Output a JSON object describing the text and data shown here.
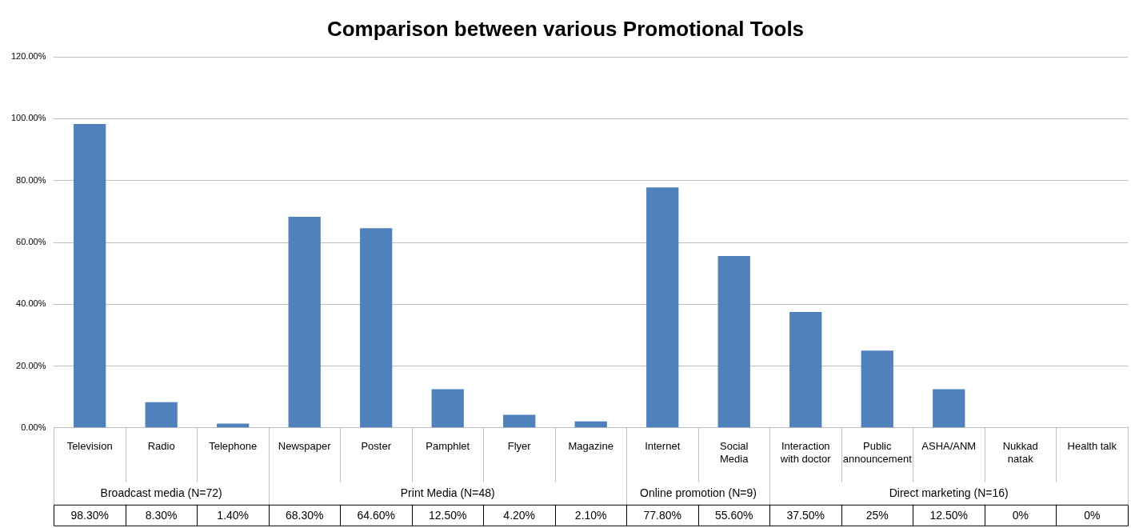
{
  "chart_data": {
    "type": "bar",
    "title": "Comparison between various Promotional Tools",
    "categories": [
      "Television",
      "Radio",
      "Telephone",
      "Newspaper",
      "Poster",
      "Pamphlet",
      "Flyer",
      "Magazine",
      "Internet",
      "Social Media",
      "Interaction with doctor",
      "Public announcement",
      "ASHA/ANM",
      "Nukkad natak",
      "Health talk"
    ],
    "values": [
      98.3,
      8.3,
      1.4,
      68.3,
      64.6,
      12.5,
      4.2,
      2.1,
      77.8,
      55.6,
      37.5,
      25,
      12.5,
      0,
      0
    ],
    "value_labels": [
      "98.30%",
      "8.30%",
      "1.40%",
      "68.30%",
      "64.60%",
      "12.50%",
      "4.20%",
      "2.10%",
      "77.80%",
      "55.60%",
      "37.50%",
      "25%",
      "12.50%",
      "0%",
      "0%"
    ],
    "color": "#4f81bd",
    "ylim": [
      0,
      120
    ],
    "yticks": [
      {
        "value": 0,
        "label": "0.00%"
      },
      {
        "value": 20,
        "label": "20.00%"
      },
      {
        "value": 40,
        "label": "40.00%"
      },
      {
        "value": 60,
        "label": "60.00%"
      },
      {
        "value": 80,
        "label": "80.00%"
      },
      {
        "value": 100,
        "label": "100.00%"
      },
      {
        "value": 120,
        "label": "120.00%"
      }
    ],
    "grid": "y",
    "legend": false,
    "annotations": [
      "Broadcast media (N=72)",
      "Print Media (N=48)",
      "Online promotion (N=9)",
      "Direct marketing (N=16)"
    ]
  }
}
